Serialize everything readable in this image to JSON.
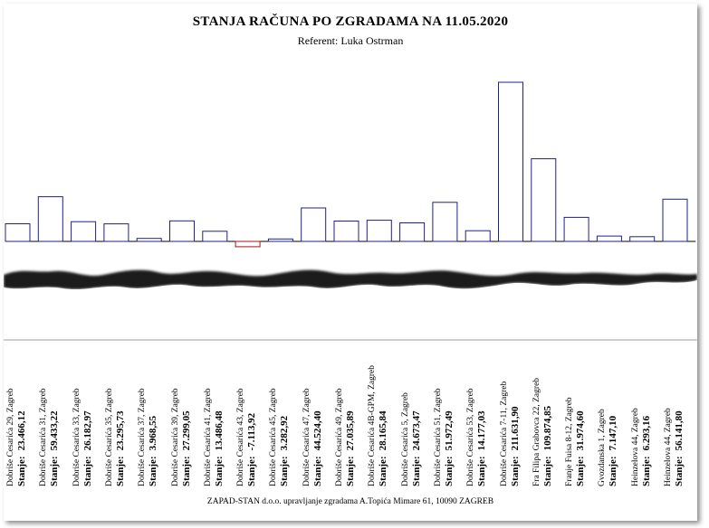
{
  "header": {
    "title": "STANJA RAČUNA PO ZGRADAMA NA 11.05.2020",
    "subtitle": "Referent: Luka Ostrman"
  },
  "stanje_label": "Stanje:",
  "footer": "ZAPAD-STAN d.o.o. upravljanje zgradama A.Topića Mimare 61, 10090 ZAGREB",
  "colors": {
    "positive": "#1f1f8f",
    "negative": "#b01010",
    "axis": "#000000"
  },
  "chart_data": {
    "type": "bar",
    "title": "STANJA RAČUNA PO ZGRADAMA NA 11.05.2020",
    "ylim": [
      -8000,
      212000
    ],
    "categories": [
      "Dobriše Cesarića 29, Zagreb",
      "Dobriše Cesarića 31, Zagreb",
      "Dobriše Cesarića 33, Zagreb",
      "Dobriše Cesarića 35, Zagreb",
      "Dobriše Cesarića 37, Zagreb",
      "Dobriše Cesarića 39, Zagreb",
      "Dobriše Cesarića 41, Zagreb",
      "Dobriše Cesarića 43, Zagreb",
      "Dobriše Cesarića 45, Zagreb",
      "Dobriše Cesarića 47, Zagreb",
      "Dobriše Cesarića 49, Zagreb",
      "Dobriše Cesarića 4B-GPM, Zagreb",
      "Dobriše Cesarića 5, Zagreb",
      "Dobriše Cesarića 51, Zagreb",
      "Dobriše Cesarića 53, Zagreb",
      "Dobriše Cesarića 7-11, Zagreb",
      "Fra Filipa Grabovca 22, Zagreb",
      "Franje Fuisa 8-12, Zagreb",
      "Gvozdanska 1, Zagreb",
      "Heinzelova 44, Zagreb",
      "Heinzelova 44, Zagreb"
    ],
    "values": [
      23466.12,
      59433.22,
      26182.97,
      23295.73,
      3968.55,
      27299.05,
      13486.48,
      -7113.92,
      3282.92,
      44524.4,
      27035.89,
      28165.84,
      24673.47,
      51972.49,
      14177.03,
      211631.9,
      109874.85,
      31974.6,
      7147.1,
      6293.16,
      56141.8
    ],
    "value_labels": [
      "23.466,12",
      "59.433,22",
      "26.182,97",
      "23.295,73",
      "3.968,55",
      "27.299,05",
      "13.486,48",
      "-7.113,92",
      "3.282,92",
      "44.524,40",
      "27.035,89",
      "28.165,84",
      "24.673,47",
      "51.972,49",
      "14.177,03",
      "211.631,90",
      "109.874,85",
      "31.974,60",
      "7.147,10",
      "6.293,16",
      "56.141,80"
    ]
  }
}
